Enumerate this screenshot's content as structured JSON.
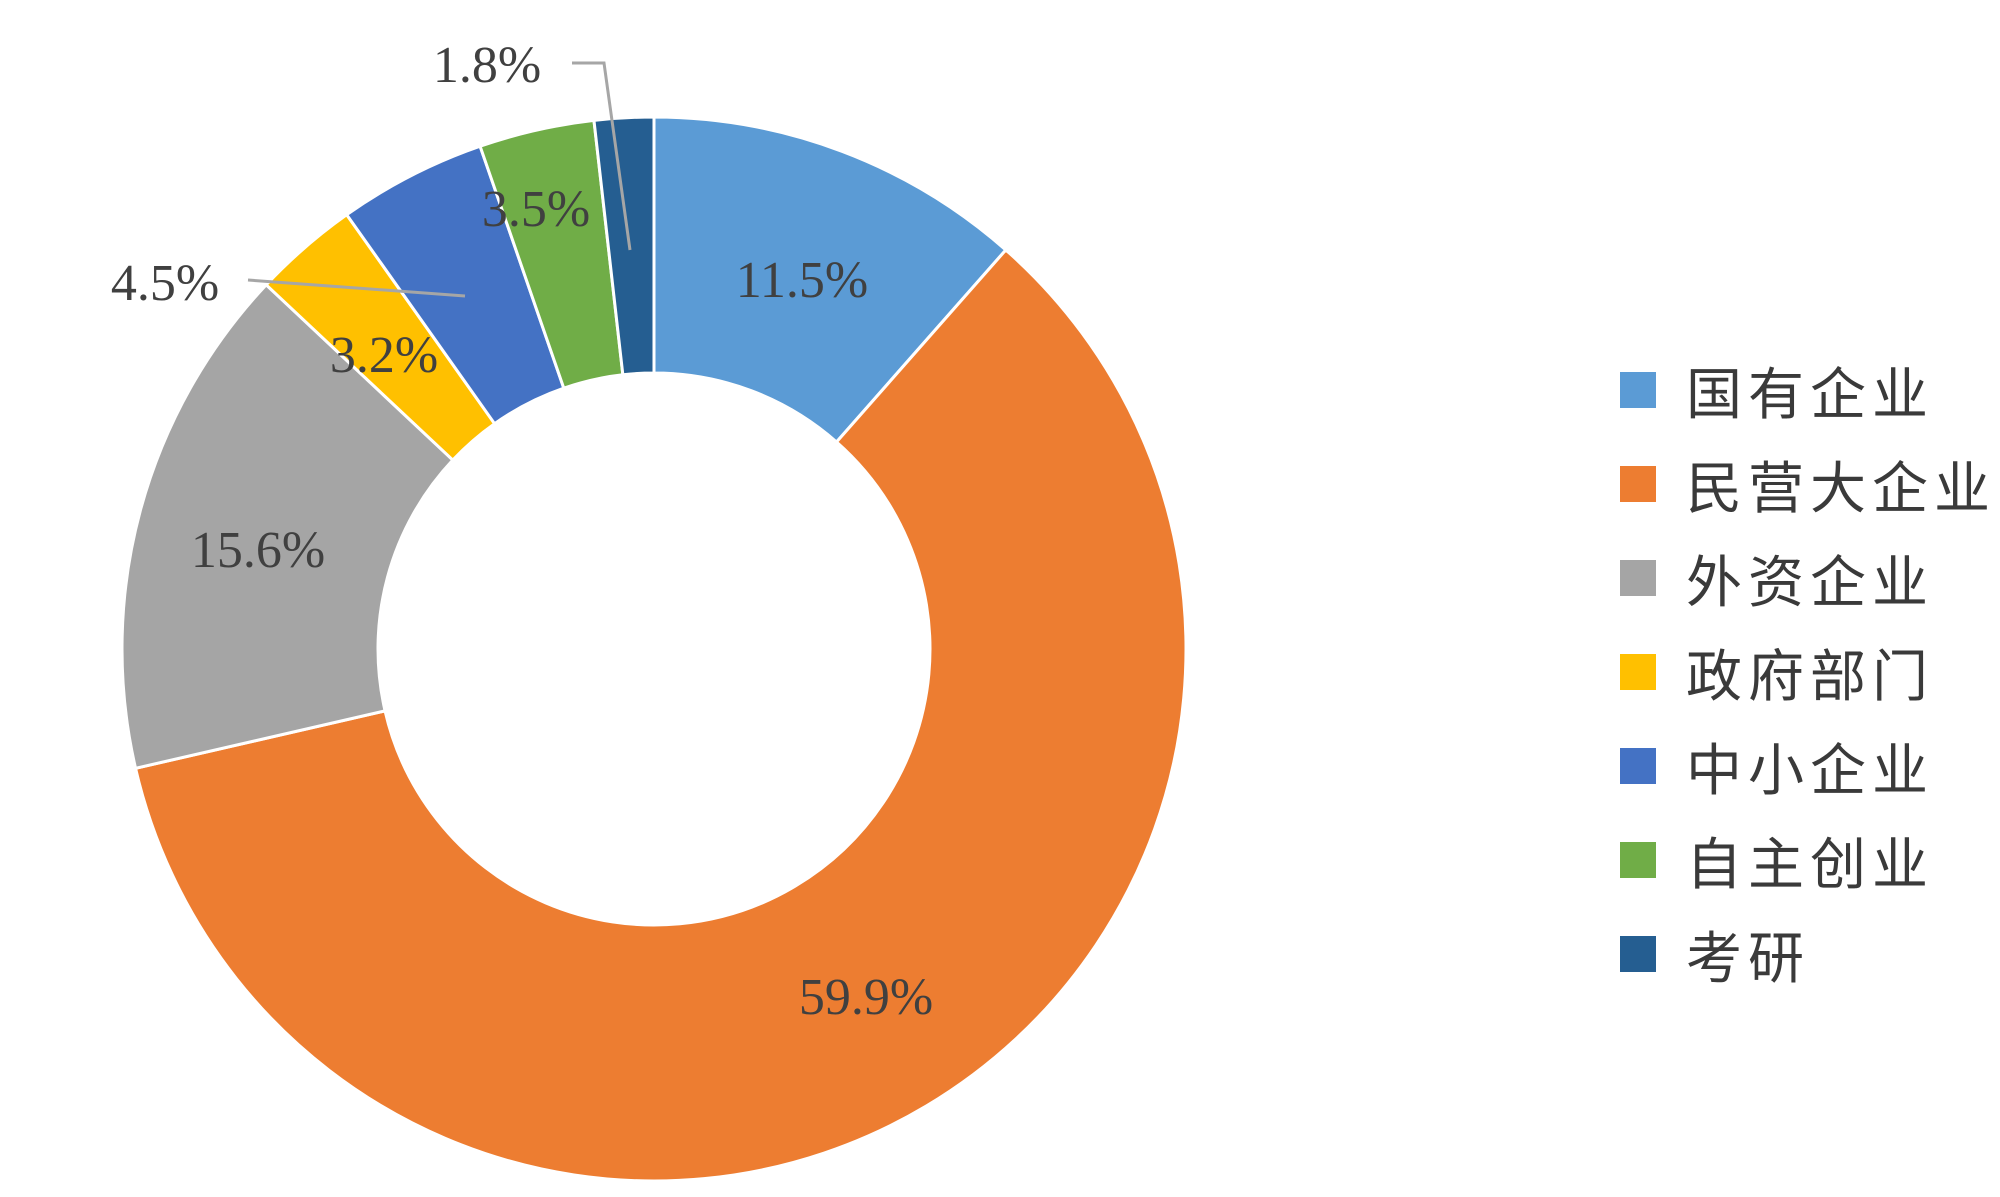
{
  "chart_data": {
    "type": "pie",
    "variant": "donut",
    "title": "",
    "legend_position": "right",
    "slices": [
      {
        "category": "国有企业",
        "value": 11.5,
        "label": "11.5%",
        "color": "#5B9BD5"
      },
      {
        "category": "民营大企业",
        "value": 59.9,
        "label": "59.9%",
        "color": "#ED7D31"
      },
      {
        "category": "外资企业",
        "value": 15.6,
        "label": "15.6%",
        "color": "#A5A5A5"
      },
      {
        "category": "政府部门",
        "value": 3.2,
        "label": "3.2%",
        "color": "#FFC000"
      },
      {
        "category": "中小企业",
        "value": 4.5,
        "label": "4.5%",
        "color": "#4472C4"
      },
      {
        "category": "自主创业",
        "value": 3.5,
        "label": "3.5%",
        "color": "#70AD47"
      },
      {
        "category": "考研",
        "value": 1.8,
        "label": "1.8%",
        "color": "#255E91"
      }
    ]
  },
  "colors": {
    "label_text": "#404040",
    "leader_line": "#A6A6A6",
    "slice_border": "#FFFFFF"
  }
}
